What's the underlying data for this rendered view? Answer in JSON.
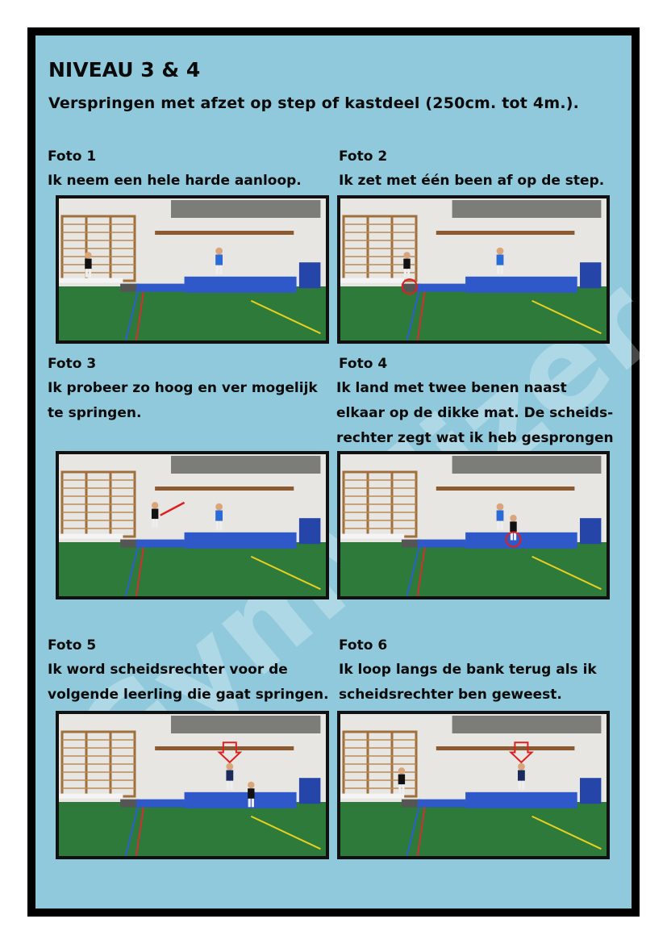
{
  "title": "NIVEAU 3 & 4",
  "subtitle": "Verspringen met afzet op step of kastdeel (250cm. tot 4m.).",
  "watermark": "Gymwijzer",
  "colors": {
    "background": "#8fc9db",
    "border": "#000000",
    "floor": "#2e7a3a",
    "mat": "#2f58c8",
    "marker": "#e02020"
  },
  "photos": [
    {
      "label": "Foto 1",
      "lines": [
        "Ik neem een hele harde aanloop."
      ]
    },
    {
      "label": "Foto 2",
      "lines": [
        "Ik zet met één been af op de step."
      ]
    },
    {
      "label": "Foto 3",
      "lines": [
        "Ik probeer zo hoog en ver mogelijk",
        "te springen."
      ]
    },
    {
      "label": "Foto 4",
      "lines": [
        "Ik land met twee benen naast",
        "elkaar op de dikke mat. De scheids-",
        "rechter zegt wat ik heb gesprongen"
      ]
    },
    {
      "label": "Foto 5",
      "lines": [
        "Ik word scheidsrechter voor de",
        "volgende leerling die gaat springen."
      ]
    },
    {
      "label": "Foto 6",
      "lines": [
        "Ik loop langs de bank terug als ik",
        "scheidsrechter ben geweest."
      ]
    }
  ]
}
